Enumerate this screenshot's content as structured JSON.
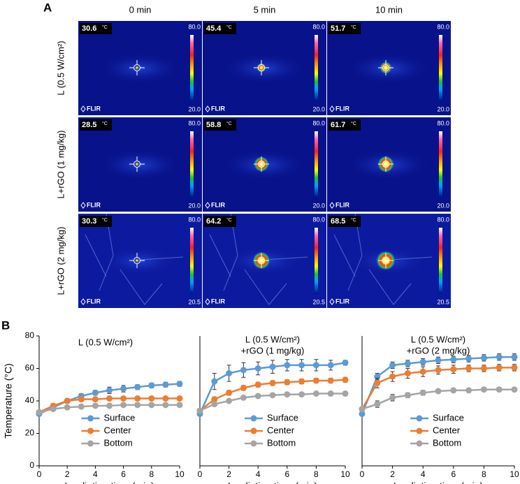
{
  "panel_a": {
    "label": "A",
    "columns": [
      "0 min",
      "5 min",
      "10 min"
    ],
    "rows": [
      "L (0.5 W/cm²)",
      "L+rGO (1 mg/kg)",
      "L+rGO (2 mg/kg)"
    ],
    "unit": "°C",
    "logo": "FLIR",
    "images": [
      [
        {
          "temp": "30.6",
          "max": "80.0",
          "min": "20.0"
        },
        {
          "temp": "45.4",
          "max": "80.0",
          "min": "20.0"
        },
        {
          "temp": "51.7",
          "max": "80.0",
          "min": "20.0"
        }
      ],
      [
        {
          "temp": "28.5",
          "max": "80.0",
          "min": "20.0"
        },
        {
          "temp": "58.8",
          "max": "80.0",
          "min": "20.0"
        },
        {
          "temp": "61.7",
          "max": "80.0",
          "min": "20.0"
        }
      ],
      [
        {
          "temp": "30.3",
          "max": "80.0",
          "min": "20.5"
        },
        {
          "temp": "64.2",
          "max": "80.0",
          "min": "20.5"
        },
        {
          "temp": "68.5",
          "max": "80.0",
          "min": "20.5"
        }
      ]
    ]
  },
  "panel_b": {
    "label": "B"
  },
  "chart_data": [
    {
      "type": "line",
      "title": "L (0.5 W/cm²)",
      "ylabel": "Temperature (°C)",
      "xlabel": "Irradiation time (min)",
      "x": [
        0,
        1,
        2,
        3,
        4,
        5,
        6,
        7,
        8,
        9,
        10
      ],
      "xlim": [
        0,
        10
      ],
      "xticks": [
        0,
        2,
        4,
        6,
        8,
        10
      ],
      "ylim": [
        0,
        80
      ],
      "yticks": [
        0,
        20,
        40,
        60,
        80
      ],
      "legend": "lower center",
      "series": [
        {
          "name": "Surface",
          "color": "#5b9bd5",
          "values": [
            32,
            36,
            40,
            43,
            45,
            46.5,
            47.5,
            48.5,
            49.5,
            50,
            50.5
          ],
          "errors": [
            1,
            1,
            1.5,
            1.5,
            1.5,
            2,
            2,
            1.5,
            1.5,
            1.5,
            1.5
          ]
        },
        {
          "name": "Center",
          "color": "#ed7d31",
          "values": [
            33,
            37,
            40,
            41,
            41,
            41.5,
            41.5,
            41.5,
            41.5,
            41.5,
            41.5
          ],
          "errors": [
            1,
            1,
            1,
            1,
            1,
            1,
            1,
            1,
            1,
            1,
            1
          ]
        },
        {
          "name": "Bottom",
          "color": "#a5a5a5",
          "values": [
            33,
            35,
            36,
            36.5,
            37,
            37,
            37.5,
            37.5,
            37.5,
            37.5,
            37.5
          ],
          "errors": [
            1,
            1,
            1,
            1,
            1,
            1,
            1,
            1,
            1,
            1,
            1
          ]
        }
      ]
    },
    {
      "type": "line",
      "title": "L (0.5 W/cm²)",
      "subtitle": "+rGO (1 mg/kg)",
      "xlabel": "Irradiation time (min)",
      "x": [
        0,
        1,
        2,
        3,
        4,
        5,
        6,
        7,
        8,
        9,
        10
      ],
      "xlim": [
        0,
        10
      ],
      "xticks": [
        0,
        2,
        4,
        6,
        8,
        10
      ],
      "ylim": [
        0,
        80
      ],
      "legend": "lower center",
      "series": [
        {
          "name": "Surface",
          "color": "#5b9bd5",
          "values": [
            32,
            52,
            57,
            59,
            60,
            61,
            62,
            62,
            62,
            62,
            63.5
          ],
          "errors": [
            1,
            5,
            5,
            4.5,
            4,
            4,
            3.5,
            3.5,
            3.5,
            3,
            1.5
          ]
        },
        {
          "name": "Center",
          "color": "#ed7d31",
          "values": [
            34,
            41,
            45,
            48,
            50,
            51,
            51.5,
            52,
            52.5,
            52.5,
            53
          ],
          "errors": [
            1,
            1.5,
            1.5,
            1.5,
            1.5,
            1.5,
            1.5,
            1.5,
            1.5,
            1.5,
            1.5
          ]
        },
        {
          "name": "Bottom",
          "color": "#a5a5a5",
          "values": [
            34,
            38,
            40,
            42,
            43,
            43.5,
            44,
            44,
            44.5,
            44.5,
            44.5
          ],
          "errors": [
            1,
            1,
            1,
            1,
            1,
            1,
            1,
            1,
            1,
            1,
            1
          ]
        }
      ]
    },
    {
      "type": "line",
      "title": "L (0.5 W/cm²)",
      "subtitle": "+rGO (2 mg/kg)",
      "xlabel": "Irradiation time (min)",
      "x": [
        0,
        1,
        2,
        3,
        4,
        5,
        6,
        7,
        8,
        9,
        10
      ],
      "xlim": [
        0,
        10
      ],
      "xticks": [
        0,
        2,
        4,
        6,
        8,
        10
      ],
      "ylim": [
        0,
        80
      ],
      "legend": "lower center",
      "series": [
        {
          "name": "Surface",
          "color": "#5b9bd5",
          "values": [
            32,
            55,
            62,
            63,
            64,
            65,
            65.5,
            66,
            66.5,
            67,
            67
          ],
          "errors": [
            1,
            2,
            2,
            2,
            2,
            2,
            2,
            2,
            2,
            2,
            2
          ]
        },
        {
          "name": "Center",
          "color": "#ed7d31",
          "values": [
            35,
            51,
            55,
            57,
            58,
            59,
            59.5,
            60,
            60,
            60.5,
            60.5
          ],
          "errors": [
            1,
            3,
            3,
            3,
            3,
            2.5,
            2.5,
            2,
            2,
            2,
            2
          ]
        },
        {
          "name": "Bottom",
          "color": "#a5a5a5",
          "values": [
            35,
            38,
            42,
            43.5,
            45,
            46,
            46.5,
            46.5,
            47,
            47,
            47
          ],
          "errors": [
            1,
            2,
            2,
            1.5,
            1.5,
            1,
            1,
            1,
            1,
            1,
            1
          ]
        }
      ]
    }
  ]
}
